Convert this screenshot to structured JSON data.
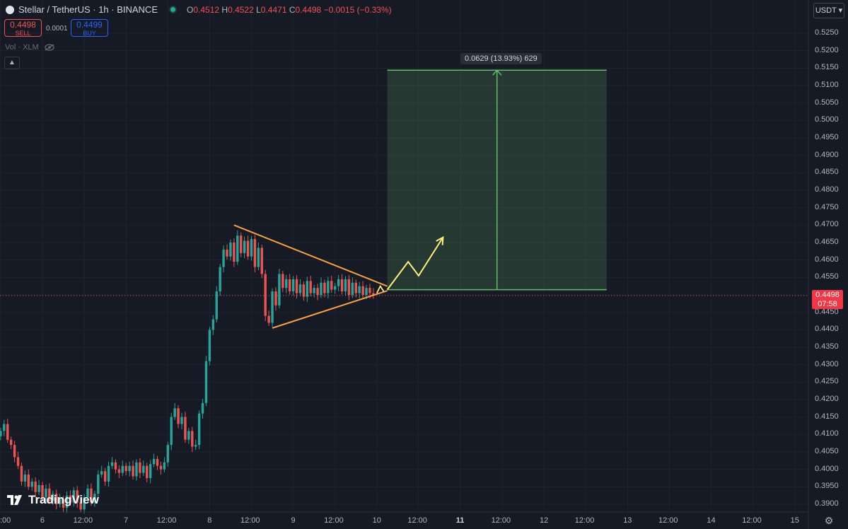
{
  "header": {
    "symbol": "Stellar / TetherUS · 1h · BINANCE",
    "ohlc": {
      "o_label": "O",
      "o": "0.4512",
      "h_label": "H",
      "h": "0.4522",
      "l_label": "L",
      "l": "0.4471",
      "c_label": "C",
      "c": "0.4498",
      "change": "−0.0015 (−0.33%)"
    }
  },
  "trade": {
    "sell_price": "0.4498",
    "sell_label": "SELL",
    "spread": "0.0001",
    "buy_price": "0.4499",
    "buy_label": "BUY"
  },
  "volume_label": "Vol · XLM",
  "currency_button": "USDT",
  "icons": {
    "collapse": "chevron-up-icon",
    "visibility": "eye-icon",
    "settings": "gear-icon",
    "currency_dropdown": "chevron-down-icon"
  },
  "current_price": {
    "price": "0.4498",
    "countdown": "07:58"
  },
  "measure_label": "0.0629 (13.93%) 629",
  "brand": "TradingView",
  "colors": {
    "up": "#26a69a",
    "down": "#ef5350",
    "triangle": "#f7a23e",
    "projection": "#fff176",
    "target_box": "#66bb6a"
  },
  "chart_data": {
    "type": "candlestick",
    "symbol": "XLMUSDT",
    "interval": "1h",
    "y_ticks": [
      "0.5250",
      "0.5200",
      "0.5150",
      "0.5100",
      "0.5050",
      "0.5000",
      "0.4950",
      "0.4900",
      "0.4850",
      "0.4800",
      "0.4750",
      "0.4700",
      "0.4650",
      "0.4600",
      "0.4550",
      "0.4500",
      "0.4450",
      "0.4400",
      "0.4350",
      "0.4300",
      "0.4250",
      "0.4200",
      "0.4150",
      "0.4100",
      "0.4050",
      "0.4000",
      "0.3950",
      "0.3900"
    ],
    "ylim": [
      0.3885,
      0.527
    ],
    "x_ticks": [
      {
        "label": ":00",
        "i": -1
      },
      {
        "label": "6",
        "i": 11
      },
      {
        "label": "12:00",
        "i": 23
      },
      {
        "label": "7",
        "i": 35
      },
      {
        "label": "12:00",
        "i": 47
      },
      {
        "label": "8",
        "i": 59
      },
      {
        "label": "12:00",
        "i": 71
      },
      {
        "label": "9",
        "i": 83
      },
      {
        "label": "12:00",
        "i": 95
      },
      {
        "label": "10",
        "i": 107
      },
      {
        "label": "12:00",
        "i": 119
      },
      {
        "label": "11",
        "i": 131,
        "bold": true
      },
      {
        "label": "12:00",
        "i": 143
      },
      {
        "label": "12",
        "i": 155
      },
      {
        "label": "12:00",
        "i": 167
      },
      {
        "label": "13",
        "i": 179
      },
      {
        "label": "12:00",
        "i": 191
      },
      {
        "label": "14",
        "i": 203
      },
      {
        "label": "12:00",
        "i": 215
      },
      {
        "label": "15",
        "i": 227
      }
    ],
    "closes": [
      0.411,
      0.413,
      0.4085,
      0.407,
      0.4035,
      0.401,
      0.3965,
      0.3985,
      0.395,
      0.3965,
      0.3935,
      0.3955,
      0.392,
      0.3945,
      0.391,
      0.393,
      0.39,
      0.3915,
      0.389,
      0.3925,
      0.3905,
      0.394,
      0.3905,
      0.3885,
      0.392,
      0.3945,
      0.3905,
      0.393,
      0.3985,
      0.3995,
      0.3965,
      0.401,
      0.402,
      0.4,
      0.399,
      0.401,
      0.3995,
      0.401,
      0.398,
      0.402,
      0.399,
      0.401,
      0.3975,
      0.4015,
      0.403,
      0.401,
      0.4,
      0.402,
      0.407,
      0.415,
      0.4175,
      0.413,
      0.415,
      0.4085,
      0.411,
      0.4065,
      0.407,
      0.416,
      0.419,
      0.431,
      0.44,
      0.443,
      0.451,
      0.458,
      0.463,
      0.461,
      0.465,
      0.4595,
      0.467,
      0.462,
      0.4655,
      0.461,
      0.466,
      0.458,
      0.4635,
      0.456,
      0.444,
      0.442,
      0.451,
      0.447,
      0.456,
      0.452,
      0.4545,
      0.451,
      0.4545,
      0.4505,
      0.453,
      0.4495,
      0.454,
      0.4505,
      0.452,
      0.45,
      0.4535,
      0.4505,
      0.454,
      0.4515,
      0.4525,
      0.4545,
      0.451,
      0.4545,
      0.45,
      0.4535,
      0.4505,
      0.4525,
      0.45,
      0.452,
      0.4505,
      0.4498
    ],
    "triangle": {
      "upper": [
        {
          "i": 66,
          "price": 0.47
        },
        {
          "i": 110,
          "price": 0.4525
        }
      ],
      "lower": [
        {
          "i": 77,
          "price": 0.4405
        },
        {
          "i": 110,
          "price": 0.4512
        }
      ],
      "apex_arrow": [
        {
          "i": 107,
          "price": 0.4505
        },
        {
          "i": 108,
          "price": 0.4525
        },
        {
          "i": 109,
          "price": 0.451
        }
      ]
    },
    "projection_path": [
      {
        "i": 110,
        "price": 0.4515
      },
      {
        "i": 116,
        "price": 0.4595
      },
      {
        "i": 119,
        "price": 0.4555
      },
      {
        "i": 126,
        "price": 0.4665
      }
    ],
    "target_box": {
      "i_start": 110,
      "i_end": 173,
      "low": 0.4515,
      "high": 0.5144
    },
    "current_price_line": 0.4498
  }
}
